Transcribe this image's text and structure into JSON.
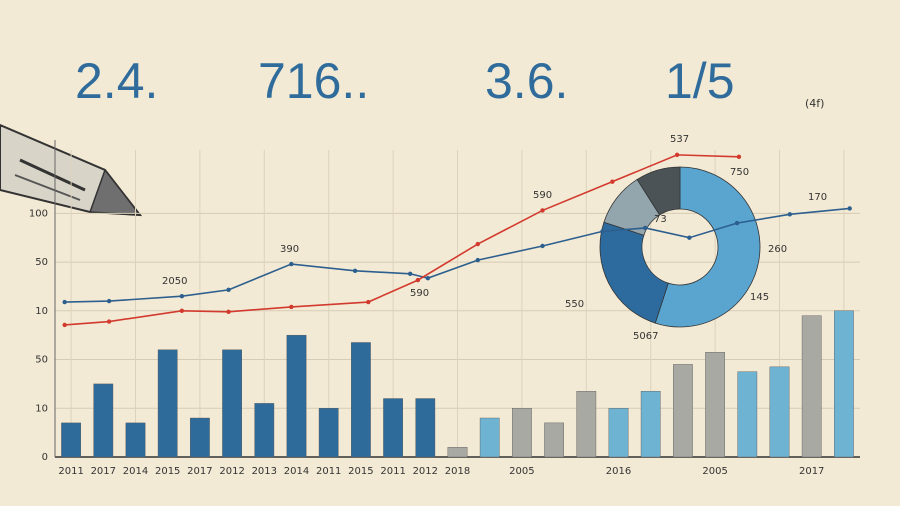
{
  "header": {
    "numbers": [
      "2.4.",
      "716..",
      "3.6.",
      "1/5"
    ],
    "note": "(4f)"
  },
  "annotations": [
    "2050",
    "390",
    "590",
    "590",
    "537",
    "750",
    "170",
    "73",
    "260",
    "145",
    "550",
    "5067"
  ],
  "chart_data": [
    {
      "type": "bar",
      "categories": [
        "2011",
        "2017",
        "2014",
        "2015",
        "2017",
        "2012",
        "2013",
        "2014",
        "2011",
        "2015",
        "2011",
        "2012",
        "2018",
        null,
        "2005",
        null,
        null,
        "2016",
        null,
        null,
        "2005",
        null,
        null,
        "2017",
        null
      ],
      "values": [
        7,
        15,
        7,
        22,
        8,
        22,
        11,
        25,
        10,
        23.5,
        12,
        12,
        2,
        8,
        10,
        7,
        13.5,
        10,
        13.5,
        19,
        21.5,
        17.5,
        18.5,
        29,
        30
      ],
      "colors": [
        "#2e6a9a",
        "#2e6a9a",
        "#2e6a9a",
        "#2e6a9a",
        "#2e6a9a",
        "#2e6a9a",
        "#2e6a9a",
        "#2e6a9a",
        "#2e6a9a",
        "#2e6a9a",
        "#2e6a9a",
        "#2e6a9a",
        "#a9a9a4",
        "#6fb3d3",
        "#a9a9a4",
        "#a9a9a4",
        "#a9a9a4",
        "#6fb3d3",
        "#6fb3d3",
        "#a9a9a4",
        "#a9a9a4",
        "#6fb3d3",
        "#6fb3d3",
        "#a9a9a4",
        "#6fb3d3"
      ],
      "ylim": [
        0,
        63
      ],
      "yticks": [
        0,
        10,
        {
          "value": 20,
          "label": "50"
        },
        {
          "value": 30,
          "label": "10"
        },
        {
          "value": 40,
          "label": "50"
        },
        {
          "value": 50,
          "label": "100"
        }
      ],
      "grid": true
    },
    {
      "type": "line",
      "xlim": [
        -0.5,
        24.5
      ],
      "ylim": [
        0,
        63
      ],
      "series": [
        {
          "color": "#2d5f8e",
          "x": [
            -0.2,
            1.18,
            3.44,
            4.89,
            6.84,
            8.82,
            10.53,
            11.08,
            12.63,
            14.64,
            16.5,
            17.83,
            19.2,
            20.68,
            22.32,
            24.18
          ],
          "values": [
            31.8,
            32,
            33,
            34.3,
            39.6,
            38.2,
            37.6,
            36.7,
            40.4,
            43.3,
            46.3,
            47,
            45,
            48,
            49.8,
            51
          ]
        },
        {
          "color": "#d23a2e",
          "x": [
            -0.2,
            1.18,
            3.44,
            4.89,
            6.84,
            9.23,
            10.77,
            12.63,
            14.64,
            16.81,
            18.82,
            20.74
          ],
          "values": [
            27.1,
            27.8,
            30,
            29.8,
            30.8,
            31.8,
            36.3,
            43.7,
            50.6,
            56.5,
            62,
            61.6
          ]
        }
      ]
    },
    {
      "type": "pie",
      "donut": true,
      "values": [
        55,
        25,
        11,
        9
      ],
      "colors": [
        "#5aa5d0",
        "#2d6b9e",
        "#93a5ad",
        "#4b5356"
      ]
    }
  ]
}
